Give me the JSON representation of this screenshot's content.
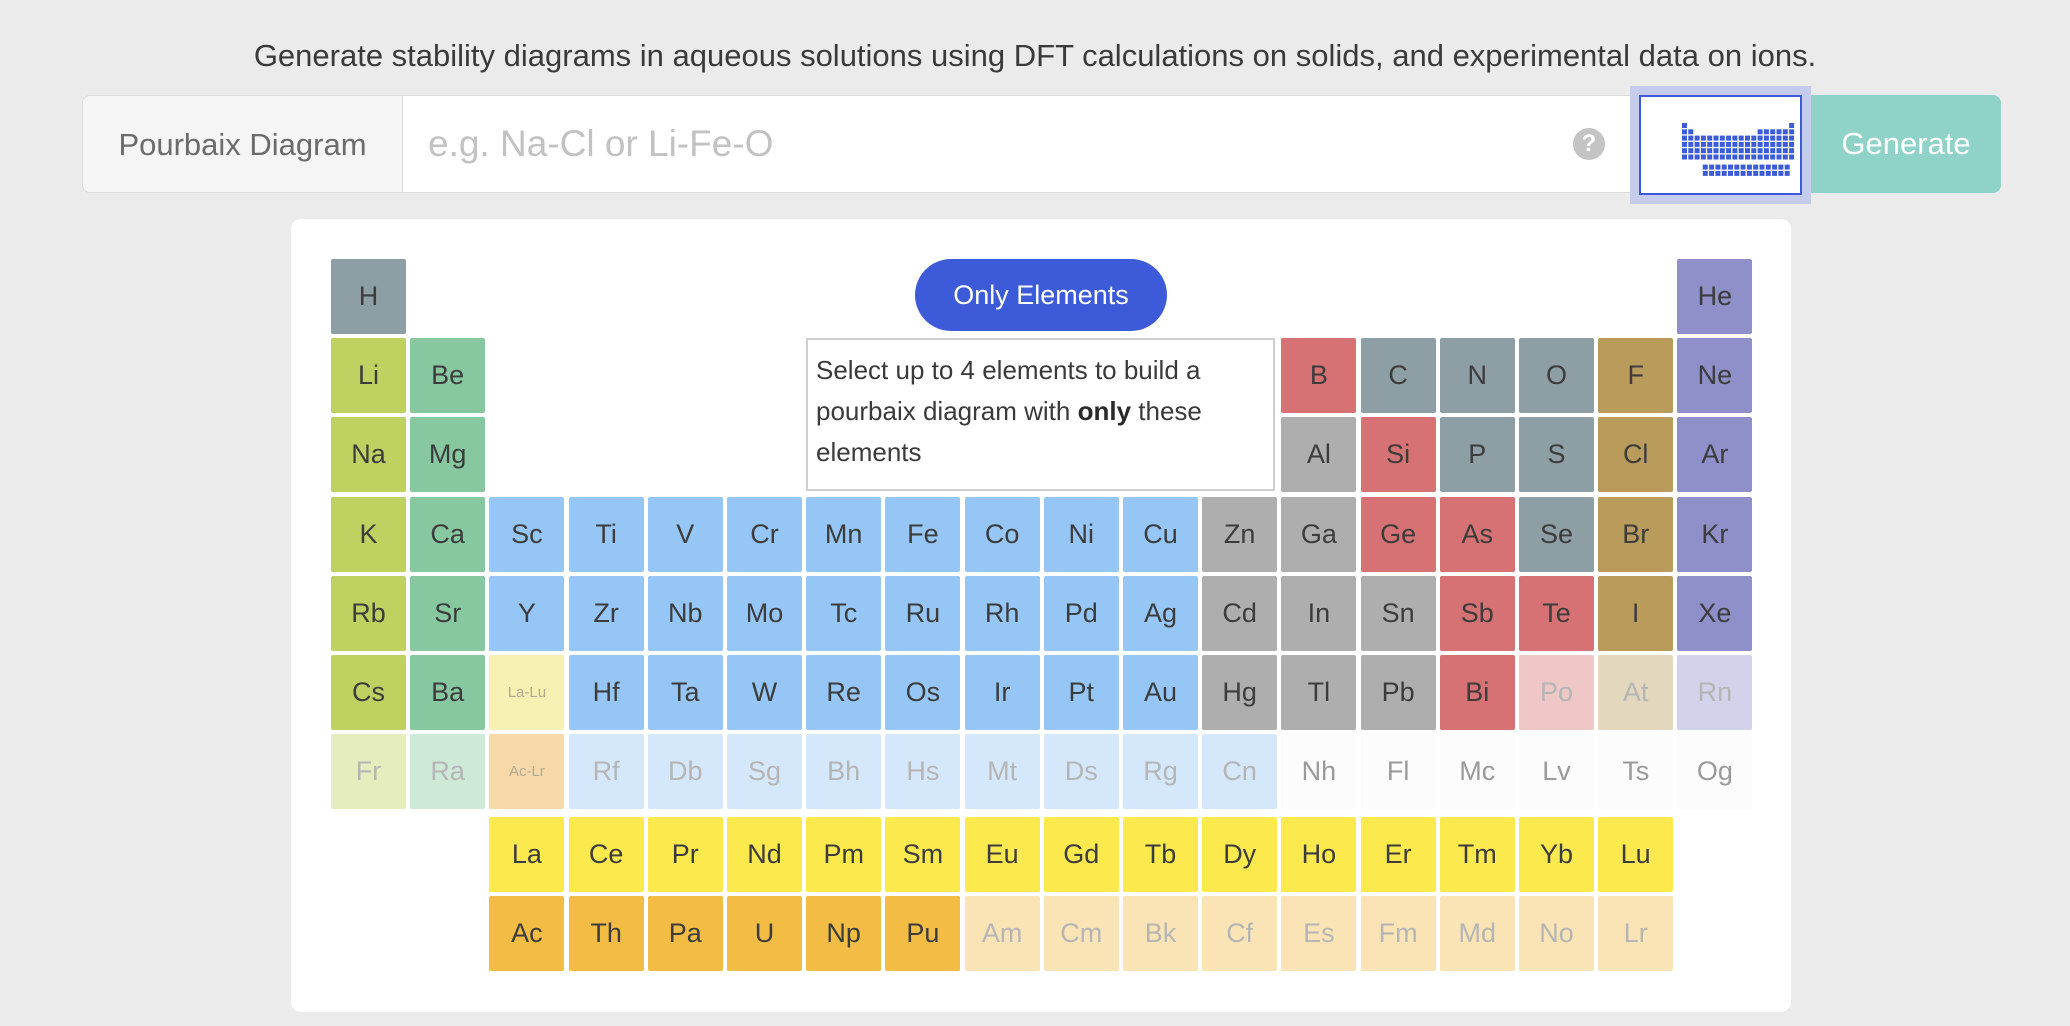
{
  "intro_text": "Generate stability diagrams in aqueous solutions using DFT calculations on solids, and experimental data on ions.",
  "search": {
    "addon_label": "Pourbaix Diagram",
    "placeholder": "e.g. Na-Cl or Li-Fe-O",
    "value": "",
    "help_symbol": "?",
    "periodic_table_toggle_icon": "periodic-table-icon",
    "generate_label": "Generate"
  },
  "table": {
    "only_elements_label": "Only Elements",
    "hint_before": "Select up to 4 elements to build a pourbaix diagram with ",
    "hint_bold": "only",
    "hint_after": " these elements",
    "colors": {
      "hydrogen": "#8e9ea5",
      "alkali": "#bfd160",
      "alkaline": "#88c8a0",
      "transition": "#96c6f5",
      "post_transition": "#aeaeae",
      "metalloid": "#d67274",
      "nonmetal": "#8e9ea5",
      "halogen": "#b99c5c",
      "noble": "#8f8fca",
      "lanthanide": "#fbe94e",
      "actinide": "#f3bc45",
      "lanthanide_group": "#f7f0b3",
      "actinide_group": "#f7d9a9"
    },
    "elements": [
      {
        "symbol": "H",
        "group": "hydrogen",
        "row": 1,
        "col": 1,
        "enabled": true
      },
      {
        "symbol": "He",
        "group": "noble",
        "row": 1,
        "col": 18,
        "enabled": true
      },
      {
        "symbol": "Li",
        "group": "alkali",
        "row": 2,
        "col": 1,
        "enabled": true
      },
      {
        "symbol": "Be",
        "group": "alkaline",
        "row": 2,
        "col": 2,
        "enabled": true
      },
      {
        "symbol": "B",
        "group": "metalloid",
        "row": 2,
        "col": 13,
        "enabled": true
      },
      {
        "symbol": "C",
        "group": "nonmetal",
        "row": 2,
        "col": 14,
        "enabled": true
      },
      {
        "symbol": "N",
        "group": "nonmetal",
        "row": 2,
        "col": 15,
        "enabled": true
      },
      {
        "symbol": "O",
        "group": "nonmetal",
        "row": 2,
        "col": 16,
        "enabled": true
      },
      {
        "symbol": "F",
        "group": "halogen",
        "row": 2,
        "col": 17,
        "enabled": true
      },
      {
        "symbol": "Ne",
        "group": "noble",
        "row": 2,
        "col": 18,
        "enabled": true
      },
      {
        "symbol": "Na",
        "group": "alkali",
        "row": 3,
        "col": 1,
        "enabled": true
      },
      {
        "symbol": "Mg",
        "group": "alkaline",
        "row": 3,
        "col": 2,
        "enabled": true
      },
      {
        "symbol": "Al",
        "group": "post_transition",
        "row": 3,
        "col": 13,
        "enabled": true
      },
      {
        "symbol": "Si",
        "group": "metalloid",
        "row": 3,
        "col": 14,
        "enabled": true
      },
      {
        "symbol": "P",
        "group": "nonmetal",
        "row": 3,
        "col": 15,
        "enabled": true
      },
      {
        "symbol": "S",
        "group": "nonmetal",
        "row": 3,
        "col": 16,
        "enabled": true
      },
      {
        "symbol": "Cl",
        "group": "halogen",
        "row": 3,
        "col": 17,
        "enabled": true
      },
      {
        "symbol": "Ar",
        "group": "noble",
        "row": 3,
        "col": 18,
        "enabled": true
      },
      {
        "symbol": "K",
        "group": "alkali",
        "row": 4,
        "col": 1,
        "enabled": true
      },
      {
        "symbol": "Ca",
        "group": "alkaline",
        "row": 4,
        "col": 2,
        "enabled": true
      },
      {
        "symbol": "Sc",
        "group": "transition",
        "row": 4,
        "col": 3,
        "enabled": true
      },
      {
        "symbol": "Ti",
        "group": "transition",
        "row": 4,
        "col": 4,
        "enabled": true
      },
      {
        "symbol": "V",
        "group": "transition",
        "row": 4,
        "col": 5,
        "enabled": true
      },
      {
        "symbol": "Cr",
        "group": "transition",
        "row": 4,
        "col": 6,
        "enabled": true
      },
      {
        "symbol": "Mn",
        "group": "transition",
        "row": 4,
        "col": 7,
        "enabled": true
      },
      {
        "symbol": "Fe",
        "group": "transition",
        "row": 4,
        "col": 8,
        "enabled": true
      },
      {
        "symbol": "Co",
        "group": "transition",
        "row": 4,
        "col": 9,
        "enabled": true
      },
      {
        "symbol": "Ni",
        "group": "transition",
        "row": 4,
        "col": 10,
        "enabled": true
      },
      {
        "symbol": "Cu",
        "group": "transition",
        "row": 4,
        "col": 11,
        "enabled": true
      },
      {
        "symbol": "Zn",
        "group": "post_transition",
        "row": 4,
        "col": 12,
        "enabled": true
      },
      {
        "symbol": "Ga",
        "group": "post_transition",
        "row": 4,
        "col": 13,
        "enabled": true
      },
      {
        "symbol": "Ge",
        "group": "metalloid",
        "row": 4,
        "col": 14,
        "enabled": true
      },
      {
        "symbol": "As",
        "group": "metalloid",
        "row": 4,
        "col": 15,
        "enabled": true
      },
      {
        "symbol": "Se",
        "group": "nonmetal",
        "row": 4,
        "col": 16,
        "enabled": true
      },
      {
        "symbol": "Br",
        "group": "halogen",
        "row": 4,
        "col": 17,
        "enabled": true
      },
      {
        "symbol": "Kr",
        "group": "noble",
        "row": 4,
        "col": 18,
        "enabled": true
      },
      {
        "symbol": "Rb",
        "group": "alkali",
        "row": 5,
        "col": 1,
        "enabled": true
      },
      {
        "symbol": "Sr",
        "group": "alkaline",
        "row": 5,
        "col": 2,
        "enabled": true
      },
      {
        "symbol": "Y",
        "group": "transition",
        "row": 5,
        "col": 3,
        "enabled": true
      },
      {
        "symbol": "Zr",
        "group": "transition",
        "row": 5,
        "col": 4,
        "enabled": true
      },
      {
        "symbol": "Nb",
        "group": "transition",
        "row": 5,
        "col": 5,
        "enabled": true
      },
      {
        "symbol": "Mo",
        "group": "transition",
        "row": 5,
        "col": 6,
        "enabled": true
      },
      {
        "symbol": "Tc",
        "group": "transition",
        "row": 5,
        "col": 7,
        "enabled": true
      },
      {
        "symbol": "Ru",
        "group": "transition",
        "row": 5,
        "col": 8,
        "enabled": true
      },
      {
        "symbol": "Rh",
        "group": "transition",
        "row": 5,
        "col": 9,
        "enabled": true
      },
      {
        "symbol": "Pd",
        "group": "transition",
        "row": 5,
        "col": 10,
        "enabled": true
      },
      {
        "symbol": "Ag",
        "group": "transition",
        "row": 5,
        "col": 11,
        "enabled": true
      },
      {
        "symbol": "Cd",
        "group": "post_transition",
        "row": 5,
        "col": 12,
        "enabled": true
      },
      {
        "symbol": "In",
        "group": "post_transition",
        "row": 5,
        "col": 13,
        "enabled": true
      },
      {
        "symbol": "Sn",
        "group": "post_transition",
        "row": 5,
        "col": 14,
        "enabled": true
      },
      {
        "symbol": "Sb",
        "group": "metalloid",
        "row": 5,
        "col": 15,
        "enabled": true
      },
      {
        "symbol": "Te",
        "group": "metalloid",
        "row": 5,
        "col": 16,
        "enabled": true
      },
      {
        "symbol": "I",
        "group": "halogen",
        "row": 5,
        "col": 17,
        "enabled": true
      },
      {
        "symbol": "Xe",
        "group": "noble",
        "row": 5,
        "col": 18,
        "enabled": true
      },
      {
        "symbol": "Cs",
        "group": "alkali",
        "row": 6,
        "col": 1,
        "enabled": true
      },
      {
        "symbol": "Ba",
        "group": "alkaline",
        "row": 6,
        "col": 2,
        "enabled": true
      },
      {
        "symbol": "La-Lu",
        "group": "lanthanide_group",
        "row": 6,
        "col": 3,
        "enabled": false,
        "small": true
      },
      {
        "symbol": "Hf",
        "group": "transition",
        "row": 6,
        "col": 4,
        "enabled": true
      },
      {
        "symbol": "Ta",
        "group": "transition",
        "row": 6,
        "col": 5,
        "enabled": true
      },
      {
        "symbol": "W",
        "group": "transition",
        "row": 6,
        "col": 6,
        "enabled": true
      },
      {
        "symbol": "Re",
        "group": "transition",
        "row": 6,
        "col": 7,
        "enabled": true
      },
      {
        "symbol": "Os",
        "group": "transition",
        "row": 6,
        "col": 8,
        "enabled": true
      },
      {
        "symbol": "Ir",
        "group": "transition",
        "row": 6,
        "col": 9,
        "enabled": true
      },
      {
        "symbol": "Pt",
        "group": "transition",
        "row": 6,
        "col": 10,
        "enabled": true
      },
      {
        "symbol": "Au",
        "group": "transition",
        "row": 6,
        "col": 11,
        "enabled": true
      },
      {
        "symbol": "Hg",
        "group": "post_transition",
        "row": 6,
        "col": 12,
        "enabled": true
      },
      {
        "symbol": "Tl",
        "group": "post_transition",
        "row": 6,
        "col": 13,
        "enabled": true
      },
      {
        "symbol": "Pb",
        "group": "post_transition",
        "row": 6,
        "col": 14,
        "enabled": true
      },
      {
        "symbol": "Bi",
        "group": "metalloid",
        "row": 6,
        "col": 15,
        "enabled": true
      },
      {
        "symbol": "Po",
        "group": "metalloid",
        "row": 6,
        "col": 16,
        "enabled": false
      },
      {
        "symbol": "At",
        "group": "halogen",
        "row": 6,
        "col": 17,
        "enabled": false
      },
      {
        "symbol": "Rn",
        "group": "noble",
        "row": 6,
        "col": 18,
        "enabled": false
      },
      {
        "symbol": "Fr",
        "group": "alkali",
        "row": 7,
        "col": 1,
        "enabled": false
      },
      {
        "symbol": "Ra",
        "group": "alkaline",
        "row": 7,
        "col": 2,
        "enabled": false
      },
      {
        "symbol": "Ac-Lr",
        "group": "actinide_group",
        "row": 7,
        "col": 3,
        "enabled": false,
        "small": true
      },
      {
        "symbol": "Rf",
        "group": "transition",
        "row": 7,
        "col": 4,
        "enabled": false
      },
      {
        "symbol": "Db",
        "group": "transition",
        "row": 7,
        "col": 5,
        "enabled": false
      },
      {
        "symbol": "Sg",
        "group": "transition",
        "row": 7,
        "col": 6,
        "enabled": false
      },
      {
        "symbol": "Bh",
        "group": "transition",
        "row": 7,
        "col": 7,
        "enabled": false
      },
      {
        "symbol": "Hs",
        "group": "transition",
        "row": 7,
        "col": 8,
        "enabled": false
      },
      {
        "symbol": "Mt",
        "group": "transition",
        "row": 7,
        "col": 9,
        "enabled": false
      },
      {
        "symbol": "Ds",
        "group": "transition",
        "row": 7,
        "col": 10,
        "enabled": false
      },
      {
        "symbol": "Rg",
        "group": "transition",
        "row": 7,
        "col": 11,
        "enabled": false
      },
      {
        "symbol": "Cn",
        "group": "transition",
        "row": 7,
        "col": 12,
        "enabled": false
      },
      {
        "symbol": "Nh",
        "group": "unknown",
        "row": 7,
        "col": 13,
        "enabled": false
      },
      {
        "symbol": "Fl",
        "group": "unknown",
        "row": 7,
        "col": 14,
        "enabled": false
      },
      {
        "symbol": "Mc",
        "group": "unknown",
        "row": 7,
        "col": 15,
        "enabled": false
      },
      {
        "symbol": "Lv",
        "group": "unknown",
        "row": 7,
        "col": 16,
        "enabled": false
      },
      {
        "symbol": "Ts",
        "group": "unknown",
        "row": 7,
        "col": 17,
        "enabled": false
      },
      {
        "symbol": "Og",
        "group": "unknown",
        "row": 7,
        "col": 18,
        "enabled": false
      },
      {
        "symbol": "La",
        "group": "lanthanide",
        "row": 9,
        "col": 3,
        "enabled": true
      },
      {
        "symbol": "Ce",
        "group": "lanthanide",
        "row": 9,
        "col": 4,
        "enabled": true
      },
      {
        "symbol": "Pr",
        "group": "lanthanide",
        "row": 9,
        "col": 5,
        "enabled": true
      },
      {
        "symbol": "Nd",
        "group": "lanthanide",
        "row": 9,
        "col": 6,
        "enabled": true
      },
      {
        "symbol": "Pm",
        "group": "lanthanide",
        "row": 9,
        "col": 7,
        "enabled": true
      },
      {
        "symbol": "Sm",
        "group": "lanthanide",
        "row": 9,
        "col": 8,
        "enabled": true
      },
      {
        "symbol": "Eu",
        "group": "lanthanide",
        "row": 9,
        "col": 9,
        "enabled": true
      },
      {
        "symbol": "Gd",
        "group": "lanthanide",
        "row": 9,
        "col": 10,
        "enabled": true
      },
      {
        "symbol": "Tb",
        "group": "lanthanide",
        "row": 9,
        "col": 11,
        "enabled": true
      },
      {
        "symbol": "Dy",
        "group": "lanthanide",
        "row": 9,
        "col": 12,
        "enabled": true
      },
      {
        "symbol": "Ho",
        "group": "lanthanide",
        "row": 9,
        "col": 13,
        "enabled": true
      },
      {
        "symbol": "Er",
        "group": "lanthanide",
        "row": 9,
        "col": 14,
        "enabled": true
      },
      {
        "symbol": "Tm",
        "group": "lanthanide",
        "row": 9,
        "col": 15,
        "enabled": true
      },
      {
        "symbol": "Yb",
        "group": "lanthanide",
        "row": 9,
        "col": 16,
        "enabled": true
      },
      {
        "symbol": "Lu",
        "group": "lanthanide",
        "row": 9,
        "col": 17,
        "enabled": true
      },
      {
        "symbol": "Ac",
        "group": "actinide",
        "row": 10,
        "col": 3,
        "enabled": true
      },
      {
        "symbol": "Th",
        "group": "actinide",
        "row": 10,
        "col": 4,
        "enabled": true
      },
      {
        "symbol": "Pa",
        "group": "actinide",
        "row": 10,
        "col": 5,
        "enabled": true
      },
      {
        "symbol": "U",
        "group": "actinide",
        "row": 10,
        "col": 6,
        "enabled": true
      },
      {
        "symbol": "Np",
        "group": "actinide",
        "row": 10,
        "col": 7,
        "enabled": true
      },
      {
        "symbol": "Pu",
        "group": "actinide",
        "row": 10,
        "col": 8,
        "enabled": true
      },
      {
        "symbol": "Am",
        "group": "actinide",
        "row": 10,
        "col": 9,
        "enabled": false
      },
      {
        "symbol": "Cm",
        "group": "actinide",
        "row": 10,
        "col": 10,
        "enabled": false
      },
      {
        "symbol": "Bk",
        "group": "actinide",
        "row": 10,
        "col": 11,
        "enabled": false
      },
      {
        "symbol": "Cf",
        "group": "actinide",
        "row": 10,
        "col": 12,
        "enabled": false
      },
      {
        "symbol": "Es",
        "group": "actinide",
        "row": 10,
        "col": 13,
        "enabled": false
      },
      {
        "symbol": "Fm",
        "group": "actinide",
        "row": 10,
        "col": 14,
        "enabled": false
      },
      {
        "symbol": "Md",
        "group": "actinide",
        "row": 10,
        "col": 15,
        "enabled": false
      },
      {
        "symbol": "No",
        "group": "actinide",
        "row": 10,
        "col": 16,
        "enabled": false
      },
      {
        "symbol": "Lr",
        "group": "actinide",
        "row": 10,
        "col": 17,
        "enabled": false
      }
    ]
  }
}
